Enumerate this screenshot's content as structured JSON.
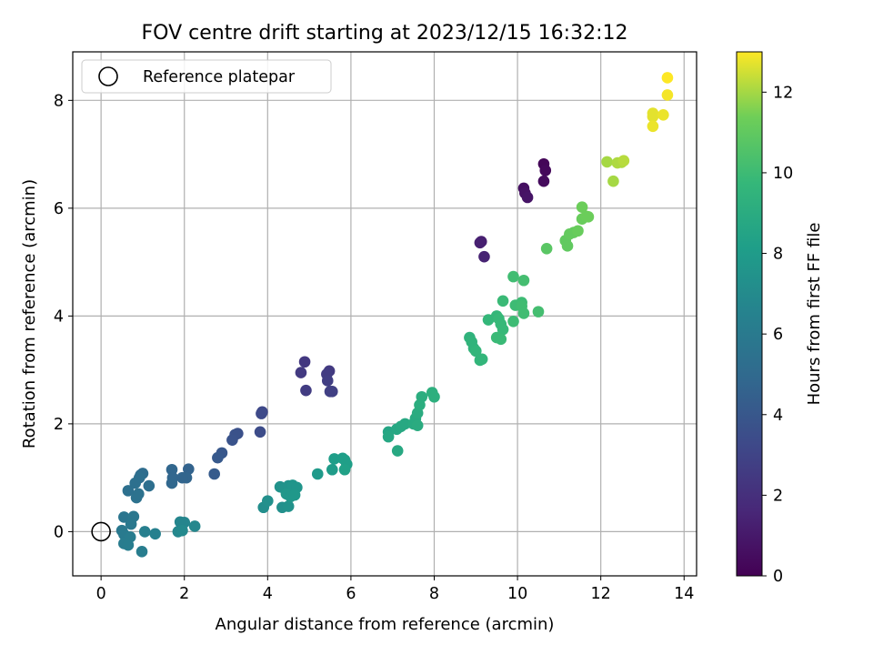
{
  "chart_data": {
    "type": "scatter",
    "title": "FOV centre drift starting at 2023/12/15 16:32:12",
    "xlabel": "Angular distance from reference (arcmin)",
    "ylabel": "Rotation from reference (arcmin)",
    "xlim": [
      -0.68,
      14.3
    ],
    "ylim": [
      -0.82,
      8.9
    ],
    "xticks": [
      0,
      2,
      4,
      6,
      8,
      10,
      12,
      14
    ],
    "yticks": [
      0,
      2,
      4,
      6,
      8
    ],
    "grid": true,
    "legend": {
      "position": "top-left",
      "entries": [
        "Reference platepar"
      ]
    },
    "reference_point": {
      "x": 0,
      "y": 0
    },
    "colorbar": {
      "label": "Hours from first FF file",
      "range": [
        0,
        13
      ],
      "ticks": [
        0,
        2,
        4,
        6,
        8,
        10,
        12
      ],
      "colormap": "viridis"
    },
    "series": [
      {
        "points": [
          {
            "x": 10.63,
            "y": 6.82,
            "c": 0.2
          },
          {
            "x": 10.67,
            "y": 6.7,
            "c": 0.3
          },
          {
            "x": 10.63,
            "y": 6.5,
            "c": 0.4
          },
          {
            "x": 10.15,
            "y": 6.37,
            "c": 0.6
          },
          {
            "x": 10.18,
            "y": 6.28,
            "c": 0.7
          },
          {
            "x": 10.24,
            "y": 6.2,
            "c": 0.8
          },
          {
            "x": 9.13,
            "y": 5.38,
            "c": 1.2
          },
          {
            "x": 9.1,
            "y": 5.36,
            "c": 1.3
          },
          {
            "x": 9.2,
            "y": 5.1,
            "c": 1.4
          },
          {
            "x": 4.89,
            "y": 3.15,
            "c": 2.4
          },
          {
            "x": 4.8,
            "y": 2.95,
            "c": 2.5
          },
          {
            "x": 4.92,
            "y": 2.62,
            "c": 2.6
          },
          {
            "x": 5.48,
            "y": 2.98,
            "c": 2.5
          },
          {
            "x": 5.42,
            "y": 2.92,
            "c": 2.6
          },
          {
            "x": 5.44,
            "y": 2.8,
            "c": 2.7
          },
          {
            "x": 5.5,
            "y": 2.6,
            "c": 2.8
          },
          {
            "x": 5.55,
            "y": 2.6,
            "c": 2.8
          },
          {
            "x": 3.87,
            "y": 2.22,
            "c": 3.2
          },
          {
            "x": 3.85,
            "y": 2.19,
            "c": 3.3
          },
          {
            "x": 3.82,
            "y": 1.85,
            "c": 3.4
          },
          {
            "x": 3.28,
            "y": 1.82,
            "c": 3.6
          },
          {
            "x": 3.22,
            "y": 1.8,
            "c": 3.7
          },
          {
            "x": 3.15,
            "y": 1.7,
            "c": 3.8
          },
          {
            "x": 2.9,
            "y": 1.46,
            "c": 4.0
          },
          {
            "x": 2.8,
            "y": 1.37,
            "c": 4.1
          },
          {
            "x": 2.72,
            "y": 1.07,
            "c": 4.2
          },
          {
            "x": 1.7,
            "y": 1.15,
            "c": 4.8
          },
          {
            "x": 1.72,
            "y": 1.0,
            "c": 4.8
          },
          {
            "x": 1.7,
            "y": 0.9,
            "c": 4.9
          },
          {
            "x": 2.1,
            "y": 1.16,
            "c": 4.6
          },
          {
            "x": 2.05,
            "y": 1.0,
            "c": 4.7
          },
          {
            "x": 1.95,
            "y": 1.0,
            "c": 4.7
          },
          {
            "x": 1.0,
            "y": 1.08,
            "c": 5.2
          },
          {
            "x": 0.95,
            "y": 1.05,
            "c": 5.2
          },
          {
            "x": 0.92,
            "y": 1.0,
            "c": 5.3
          },
          {
            "x": 1.15,
            "y": 0.85,
            "c": 5.3
          },
          {
            "x": 0.82,
            "y": 0.9,
            "c": 5.4
          },
          {
            "x": 0.65,
            "y": 0.76,
            "c": 5.4
          },
          {
            "x": 0.85,
            "y": 0.63,
            "c": 5.5
          },
          {
            "x": 0.9,
            "y": 0.7,
            "c": 5.5
          },
          {
            "x": 0.55,
            "y": 0.27,
            "c": 5.7
          },
          {
            "x": 0.78,
            "y": 0.28,
            "c": 5.8
          },
          {
            "x": 0.72,
            "y": 0.14,
            "c": 5.9
          },
          {
            "x": 0.5,
            "y": 0.02,
            "c": 5.9
          },
          {
            "x": 0.55,
            "y": -0.05,
            "c": 6.0
          },
          {
            "x": 0.7,
            "y": -0.1,
            "c": 6.1
          },
          {
            "x": 0.55,
            "y": -0.22,
            "c": 6.1
          },
          {
            "x": 0.65,
            "y": -0.25,
            "c": 6.2
          },
          {
            "x": 0.98,
            "y": -0.37,
            "c": 6.2
          },
          {
            "x": 1.05,
            "y": 0.0,
            "c": 6.3
          },
          {
            "x": 1.3,
            "y": -0.04,
            "c": 6.4
          },
          {
            "x": 1.9,
            "y": 0.18,
            "c": 6.7
          },
          {
            "x": 2.0,
            "y": 0.17,
            "c": 6.7
          },
          {
            "x": 2.25,
            "y": 0.1,
            "c": 6.8
          },
          {
            "x": 1.85,
            "y": 0.0,
            "c": 6.8
          },
          {
            "x": 1.95,
            "y": 0.02,
            "c": 6.9
          },
          {
            "x": 3.9,
            "y": 0.45,
            "c": 7.2
          },
          {
            "x": 4.0,
            "y": 0.57,
            "c": 7.3
          },
          {
            "x": 4.35,
            "y": 0.45,
            "c": 7.3
          },
          {
            "x": 4.5,
            "y": 0.47,
            "c": 7.4
          },
          {
            "x": 4.3,
            "y": 0.83,
            "c": 7.4
          },
          {
            "x": 4.4,
            "y": 0.8,
            "c": 7.5
          },
          {
            "x": 4.5,
            "y": 0.85,
            "c": 7.5
          },
          {
            "x": 4.6,
            "y": 0.86,
            "c": 7.6
          },
          {
            "x": 4.7,
            "y": 0.82,
            "c": 7.6
          },
          {
            "x": 4.45,
            "y": 0.7,
            "c": 7.7
          },
          {
            "x": 4.55,
            "y": 0.65,
            "c": 7.7
          },
          {
            "x": 4.65,
            "y": 0.68,
            "c": 7.8
          },
          {
            "x": 5.2,
            "y": 1.07,
            "c": 7.9
          },
          {
            "x": 5.55,
            "y": 1.15,
            "c": 8.0
          },
          {
            "x": 5.6,
            "y": 1.35,
            "c": 8.1
          },
          {
            "x": 5.8,
            "y": 1.36,
            "c": 8.1
          },
          {
            "x": 5.85,
            "y": 1.33,
            "c": 8.2
          },
          {
            "x": 5.9,
            "y": 1.25,
            "c": 8.2
          },
          {
            "x": 5.85,
            "y": 1.15,
            "c": 8.3
          },
          {
            "x": 6.9,
            "y": 1.85,
            "c": 8.6
          },
          {
            "x": 6.9,
            "y": 1.76,
            "c": 8.7
          },
          {
            "x": 7.1,
            "y": 1.9,
            "c": 8.7
          },
          {
            "x": 7.2,
            "y": 1.95,
            "c": 8.8
          },
          {
            "x": 7.3,
            "y": 2.0,
            "c": 8.8
          },
          {
            "x": 7.12,
            "y": 1.5,
            "c": 8.8
          },
          {
            "x": 7.5,
            "y": 2.0,
            "c": 8.9
          },
          {
            "x": 7.55,
            "y": 2.1,
            "c": 8.9
          },
          {
            "x": 7.6,
            "y": 2.2,
            "c": 9.0
          },
          {
            "x": 7.6,
            "y": 1.97,
            "c": 9.0
          },
          {
            "x": 7.65,
            "y": 2.35,
            "c": 9.1
          },
          {
            "x": 7.7,
            "y": 2.5,
            "c": 9.1
          },
          {
            "x": 7.95,
            "y": 2.58,
            "c": 9.2
          },
          {
            "x": 8.0,
            "y": 2.5,
            "c": 9.2
          },
          {
            "x": 8.85,
            "y": 3.6,
            "c": 9.4
          },
          {
            "x": 8.9,
            "y": 3.52,
            "c": 9.5
          },
          {
            "x": 8.95,
            "y": 3.4,
            "c": 9.5
          },
          {
            "x": 9.0,
            "y": 3.35,
            "c": 9.6
          },
          {
            "x": 9.1,
            "y": 3.18,
            "c": 9.6
          },
          {
            "x": 9.15,
            "y": 3.2,
            "c": 9.6
          },
          {
            "x": 9.3,
            "y": 3.93,
            "c": 9.7
          },
          {
            "x": 9.5,
            "y": 4.0,
            "c": 9.7
          },
          {
            "x": 9.55,
            "y": 3.95,
            "c": 9.8
          },
          {
            "x": 9.6,
            "y": 3.85,
            "c": 9.8
          },
          {
            "x": 9.65,
            "y": 3.75,
            "c": 9.8
          },
          {
            "x": 9.5,
            "y": 3.6,
            "c": 9.9
          },
          {
            "x": 9.6,
            "y": 3.57,
            "c": 9.9
          },
          {
            "x": 9.65,
            "y": 4.28,
            "c": 9.9
          },
          {
            "x": 9.9,
            "y": 3.9,
            "c": 10.0
          },
          {
            "x": 9.95,
            "y": 4.2,
            "c": 10.0
          },
          {
            "x": 10.1,
            "y": 4.25,
            "c": 10.0
          },
          {
            "x": 10.1,
            "y": 4.18,
            "c": 10.1
          },
          {
            "x": 10.15,
            "y": 4.05,
            "c": 10.1
          },
          {
            "x": 9.9,
            "y": 4.73,
            "c": 10.1
          },
          {
            "x": 10.15,
            "y": 4.66,
            "c": 10.2
          },
          {
            "x": 10.5,
            "y": 4.08,
            "c": 10.2
          },
          {
            "x": 10.7,
            "y": 5.25,
            "c": 10.8
          },
          {
            "x": 11.15,
            "y": 5.4,
            "c": 11.0
          },
          {
            "x": 11.2,
            "y": 5.3,
            "c": 11.0
          },
          {
            "x": 11.25,
            "y": 5.52,
            "c": 11.1
          },
          {
            "x": 11.35,
            "y": 5.55,
            "c": 11.1
          },
          {
            "x": 11.45,
            "y": 5.58,
            "c": 11.2
          },
          {
            "x": 11.55,
            "y": 5.8,
            "c": 11.2
          },
          {
            "x": 11.65,
            "y": 5.85,
            "c": 11.3
          },
          {
            "x": 11.7,
            "y": 5.84,
            "c": 11.3
          },
          {
            "x": 11.55,
            "y": 6.02,
            "c": 11.3
          },
          {
            "x": 12.15,
            "y": 6.86,
            "c": 12.0
          },
          {
            "x": 12.3,
            "y": 6.5,
            "c": 12.0
          },
          {
            "x": 12.4,
            "y": 6.84,
            "c": 12.1
          },
          {
            "x": 12.5,
            "y": 6.85,
            "c": 12.1
          },
          {
            "x": 12.55,
            "y": 6.88,
            "c": 12.2
          },
          {
            "x": 13.25,
            "y": 7.76,
            "c": 12.7
          },
          {
            "x": 13.25,
            "y": 7.7,
            "c": 12.7
          },
          {
            "x": 13.25,
            "y": 7.52,
            "c": 12.8
          },
          {
            "x": 13.5,
            "y": 7.73,
            "c": 12.8
          },
          {
            "x": 13.6,
            "y": 8.1,
            "c": 12.9
          },
          {
            "x": 13.6,
            "y": 8.42,
            "c": 13.0
          }
        ]
      }
    ]
  }
}
